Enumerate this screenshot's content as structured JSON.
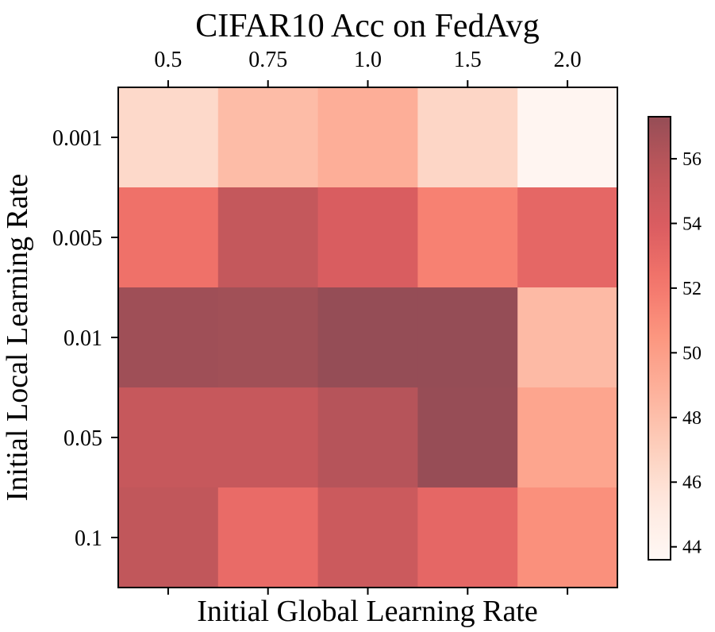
{
  "chart_data": {
    "type": "heatmap",
    "title": "CIFAR10 Acc on FedAvg",
    "xlabel": "Initial Global Learning Rate",
    "ylabel": "Initial Local Learning Rate",
    "x_categories": [
      "0.5",
      "0.75",
      "1.0",
      "1.5",
      "2.0"
    ],
    "y_categories": [
      "0.001",
      "0.005",
      "0.01",
      "0.05",
      "0.1"
    ],
    "x_axis_position": "top",
    "values": [
      [
        46.4,
        48.2,
        49.0,
        46.6,
        43.9
      ],
      [
        52.5,
        55.3,
        54.0,
        51.6,
        53.2
      ],
      [
        56.9,
        56.8,
        57.3,
        57.3,
        48.3
      ],
      [
        55.2,
        55.2,
        56.0,
        57.2,
        49.6
      ],
      [
        55.5,
        52.9,
        54.9,
        53.2,
        50.8
      ]
    ],
    "colorbar": {
      "min": 43.6,
      "max": 57.3,
      "ticks": [
        "44",
        "46",
        "48",
        "50",
        "52",
        "54",
        "56"
      ],
      "colormap": "Reds",
      "alpha": 0.7
    },
    "grid": false,
    "legend": "colorbar-right"
  }
}
